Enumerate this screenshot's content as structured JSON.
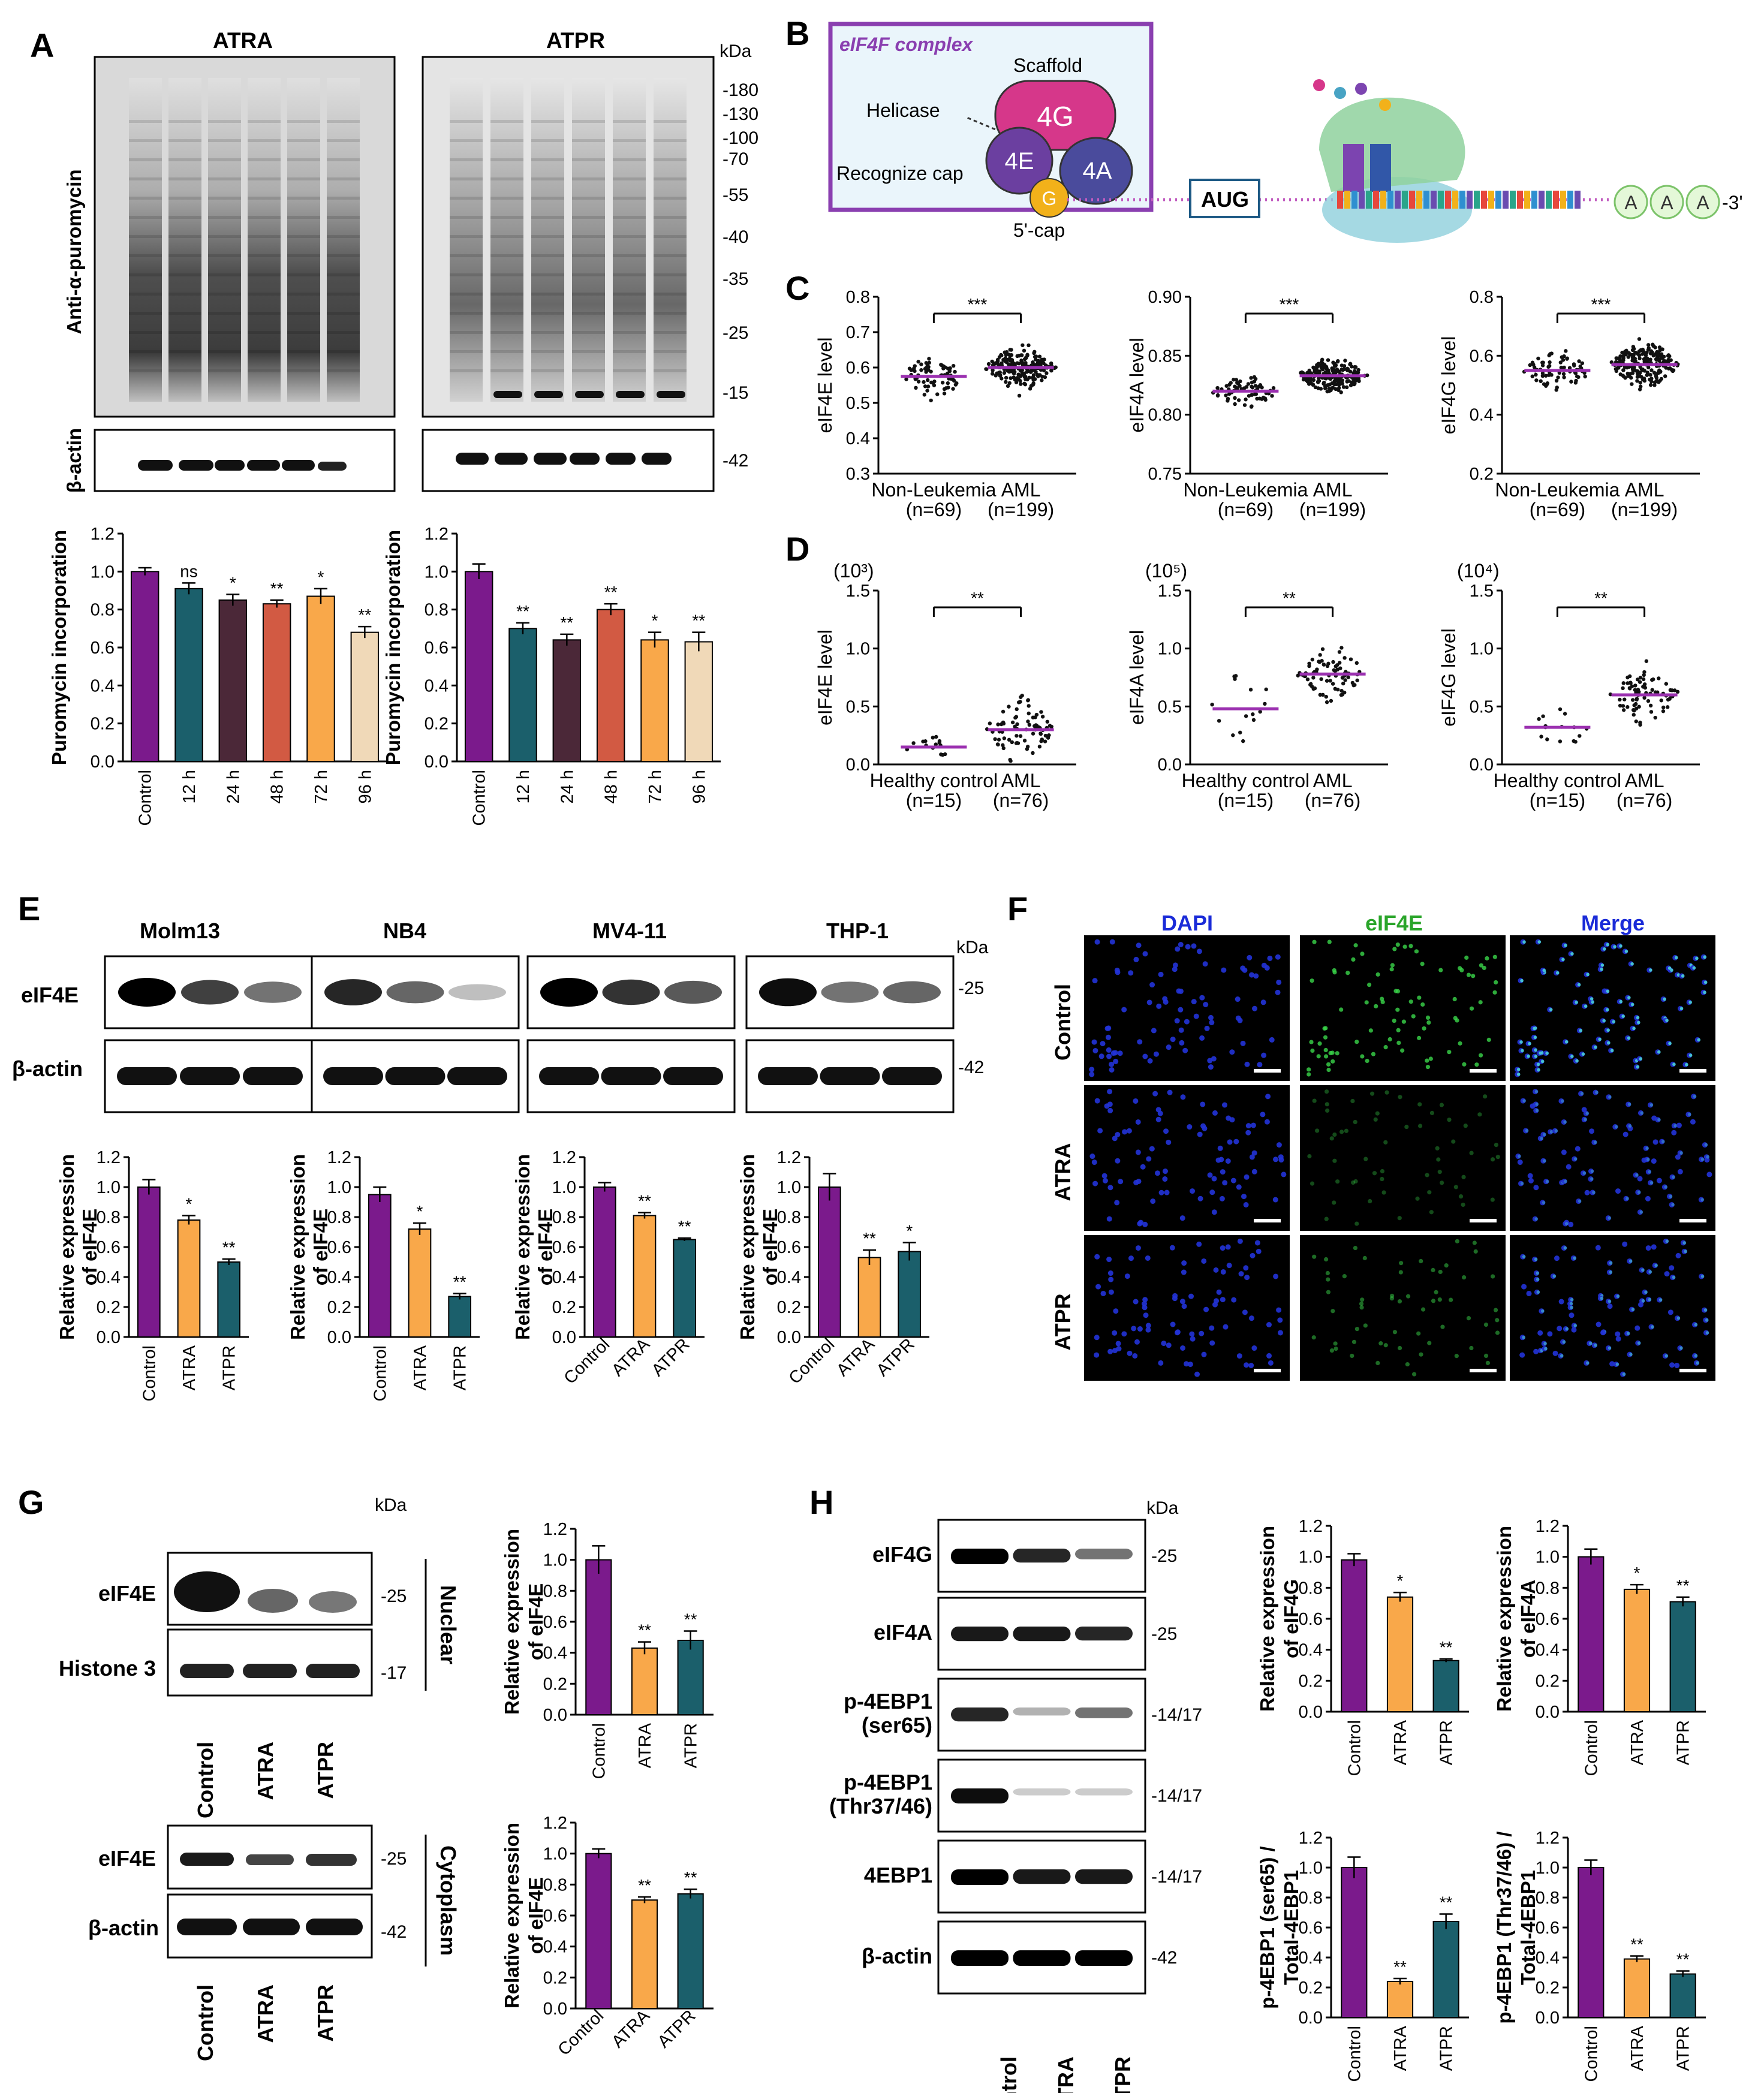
{
  "panels": {
    "A": {
      "label": "A",
      "blot_titles": [
        "ATRA",
        "ATPR"
      ],
      "kda_unit": "kDa",
      "markers": [
        "-180",
        "-130",
        "-100",
        "-70",
        "-55",
        "-40",
        "-35",
        "-25",
        "-15",
        "-42"
      ],
      "row_labels": [
        "Anti-α-puromycin",
        "β-actin"
      ]
    },
    "B": {
      "label": "B",
      "complex_title": "eIF4F complex",
      "scaffold": "Scaffold",
      "helicase": "Helicase",
      "recognize_cap": "Recognize cap",
      "sub_4G": "4G",
      "sub_4E": "4E",
      "sub_4A": "4A",
      "cap_g": "G",
      "cap_label": "5'-cap",
      "aug": "AUG",
      "polyA": [
        "A",
        "A",
        "A"
      ],
      "three_prime": "-3'"
    },
    "C": {
      "label": "C"
    },
    "D": {
      "label": "D"
    },
    "E": {
      "label": "E",
      "cells": [
        "Molm13",
        "NB4",
        "MV4-11",
        "THP-1"
      ],
      "rows": [
        "eIF4E",
        "β-actin"
      ],
      "kda_unit": "kDa",
      "markers": [
        "-25",
        "-42"
      ]
    },
    "F": {
      "label": "F",
      "cols": [
        "DAPI",
        "eIF4E",
        "Merge"
      ],
      "rows": [
        "Control",
        "ATRA",
        "ATPR"
      ]
    },
    "G": {
      "label": "G",
      "kda_unit": "kDa",
      "nuc_rows": [
        "eIF4E",
        "Histone 3"
      ],
      "nuc_markers": [
        "-25",
        "-17"
      ],
      "cyto_rows": [
        "eIF4E",
        "β-actin"
      ],
      "cyto_markers": [
        "-25",
        "-42"
      ],
      "fraction_nuclear": "Nuclear",
      "fraction_cyto": "Cytoplasm",
      "lanes": [
        "Control",
        "ATRA",
        "ATPR"
      ]
    },
    "H": {
      "label": "H",
      "kda_unit": "kDa",
      "rows": [
        "eIF4G",
        "eIF4A",
        "p-4EBP1\n(ser65)",
        "p-4EBP1\n(Thr37/46)",
        "4EBP1",
        "β-actin"
      ],
      "markers": [
        "-25",
        "-25",
        "-14/17",
        "-14/17",
        "-14/17",
        "-42"
      ],
      "lanes": [
        "Control",
        "ATRA",
        "ATPR"
      ]
    }
  },
  "colors": {
    "control": "#7b1a8c",
    "c12": "#1b5f6b",
    "c24": "#4b2838",
    "c48": "#d25a43",
    "c72": "#f9a84a",
    "c96": "#f0d9b8",
    "atra": "#f9a84a",
    "atpr": "#1b5f6b",
    "scatter_mean": "#9b30b0"
  },
  "chart_data": [
    {
      "id": "A-left",
      "type": "bar",
      "categories": [
        "Control",
        "12 h",
        "24 h",
        "48 h",
        "72 h",
        "96 h"
      ],
      "values": [
        1.0,
        0.91,
        0.85,
        0.83,
        0.87,
        0.68
      ],
      "errors": [
        0.02,
        0.03,
        0.03,
        0.02,
        0.04,
        0.03
      ],
      "sig": [
        "",
        "ns",
        "*",
        "**",
        "*",
        "**"
      ],
      "ylabel": "Puromycin incorporation",
      "ylim": [
        0,
        1.2
      ],
      "yticks": [
        "0.0",
        "0.2",
        "0.4",
        "0.6",
        "0.8",
        "1.0",
        "1.2"
      ]
    },
    {
      "id": "A-right",
      "type": "bar",
      "categories": [
        "Control",
        "12 h",
        "24 h",
        "48 h",
        "72 h",
        "96 h"
      ],
      "values": [
        1.0,
        0.7,
        0.64,
        0.8,
        0.64,
        0.63
      ],
      "errors": [
        0.04,
        0.03,
        0.03,
        0.03,
        0.04,
        0.05
      ],
      "sig": [
        "",
        "**",
        "**",
        "**",
        "*",
        "**"
      ],
      "ylabel": "Puromycin incorporation",
      "ylim": [
        0,
        1.2
      ],
      "yticks": [
        "0.0",
        "0.2",
        "0.4",
        "0.6",
        "0.8",
        "1.0",
        "1.2"
      ]
    },
    {
      "id": "C-4E",
      "type": "scatter",
      "categories": [
        "Non-Leukemia\n(n=69)",
        "AML\n(n=199)"
      ],
      "means": [
        0.575,
        0.6
      ],
      "ylabel": "eIF4E level",
      "ylim": [
        0.3,
        0.8
      ],
      "yticks": [
        "0.3",
        "0.4",
        "0.5",
        "0.6",
        "0.7",
        "0.8"
      ],
      "sig": "***"
    },
    {
      "id": "C-4A",
      "type": "scatter",
      "categories": [
        "Non-Leukemia\n(n=69)",
        "AML\n(n=199)"
      ],
      "means": [
        0.82,
        0.833
      ],
      "ylabel": "eIF4A level",
      "ylim": [
        0.75,
        0.9
      ],
      "yticks": [
        "0.75",
        "0.80",
        "0.85",
        "0.90"
      ],
      "sig": "***"
    },
    {
      "id": "C-4G",
      "type": "scatter",
      "categories": [
        "Non-Leukemia\n(n=69)",
        "AML\n(n=199)"
      ],
      "means": [
        0.55,
        0.57
      ],
      "ylabel": "eIF4G level",
      "ylim": [
        0.2,
        0.8
      ],
      "yticks": [
        "0.2",
        "0.4",
        "0.6",
        "0.8"
      ],
      "sig": "***"
    },
    {
      "id": "D-4E",
      "type": "scatter",
      "categories": [
        "Healthy control\n(n=15)",
        "AML\n(n=76)"
      ],
      "means": [
        0.15,
        0.3
      ],
      "ylabel": "eIF4E level",
      "scale": "(10³)",
      "ylim": [
        0,
        1.5
      ],
      "yticks": [
        "0.0",
        "0.5",
        "1.0",
        "1.5"
      ],
      "sig": "**"
    },
    {
      "id": "D-4A",
      "type": "scatter",
      "categories": [
        "Healthy control\n(n=15)",
        "AML\n(n=76)"
      ],
      "means": [
        0.48,
        0.78
      ],
      "ylabel": "eIF4A level",
      "scale": "(10⁵)",
      "ylim": [
        0,
        1.5
      ],
      "yticks": [
        "0.0",
        "0.5",
        "1.0",
        "1.5"
      ],
      "sig": "**"
    },
    {
      "id": "D-4G",
      "type": "scatter",
      "categories": [
        "Healthy control\n(n=15)",
        "AML\n(n=76)"
      ],
      "means": [
        0.32,
        0.6
      ],
      "ylabel": "eIF4G level",
      "scale": "(10⁴)",
      "ylim": [
        0,
        1.5
      ],
      "yticks": [
        "0.0",
        "0.5",
        "1.0",
        "1.5"
      ],
      "sig": "**"
    },
    {
      "id": "E-Molm13",
      "type": "bar",
      "categories": [
        "Control",
        "ATRA",
        "ATPR"
      ],
      "values": [
        1.0,
        0.78,
        0.5
      ],
      "errors": [
        0.05,
        0.03,
        0.02
      ],
      "sig": [
        "",
        "*",
        "**"
      ],
      "ylabel": "Relative expression\nof eIF4E",
      "ylim": [
        0,
        1.2
      ],
      "yticks": [
        "0.0",
        "0.2",
        "0.4",
        "0.6",
        "0.8",
        "1.0",
        "1.2"
      ]
    },
    {
      "id": "E-NB4",
      "type": "bar",
      "categories": [
        "Control",
        "ATRA",
        "ATPR"
      ],
      "values": [
        0.95,
        0.72,
        0.27
      ],
      "errors": [
        0.05,
        0.04,
        0.02
      ],
      "sig": [
        "",
        "*",
        "**"
      ],
      "ylabel": "Relative expression\nof eIF4E",
      "ylim": [
        0,
        1.2
      ],
      "yticks": [
        "0.0",
        "0.2",
        "0.4",
        "0.6",
        "0.8",
        "1.0",
        "1.2"
      ]
    },
    {
      "id": "E-MV4-11",
      "type": "bar",
      "categories": [
        "Control",
        "ATRA",
        "ATPR"
      ],
      "values": [
        1.0,
        0.81,
        0.65
      ],
      "errors": [
        0.03,
        0.02,
        0.01
      ],
      "sig": [
        "",
        "**",
        "**"
      ],
      "ylabel": "Relative expression\nof eIF4E",
      "ylim": [
        0,
        1.2
      ],
      "yticks": [
        "0.0",
        "0.2",
        "0.4",
        "0.6",
        "0.8",
        "1.0",
        "1.2"
      ]
    },
    {
      "id": "E-THP-1",
      "type": "bar",
      "categories": [
        "Control",
        "ATRA",
        "ATPR"
      ],
      "values": [
        1.0,
        0.53,
        0.57
      ],
      "errors": [
        0.09,
        0.05,
        0.06
      ],
      "sig": [
        "",
        "**",
        "*"
      ],
      "ylabel": "Relative expression\nof eIF4E",
      "ylim": [
        0,
        1.2
      ],
      "yticks": [
        "0.0",
        "0.2",
        "0.4",
        "0.6",
        "0.8",
        "1.0",
        "1.2"
      ]
    },
    {
      "id": "G-nuclear",
      "type": "bar",
      "categories": [
        "Control",
        "ATRA",
        "ATPR"
      ],
      "values": [
        1.0,
        0.43,
        0.48
      ],
      "errors": [
        0.09,
        0.04,
        0.06
      ],
      "sig": [
        "",
        "**",
        "**"
      ],
      "ylabel": "Relative expression\nof eIF4E",
      "ylim": [
        0,
        1.2
      ],
      "yticks": [
        "0.0",
        "0.2",
        "0.4",
        "0.6",
        "0.8",
        "1.0",
        "1.2"
      ]
    },
    {
      "id": "G-cyto",
      "type": "bar",
      "categories": [
        "Control",
        "ATRA",
        "ATPR"
      ],
      "values": [
        1.0,
        0.7,
        0.74
      ],
      "errors": [
        0.03,
        0.02,
        0.03
      ],
      "sig": [
        "",
        "**",
        "**"
      ],
      "ylabel": "Relative expression\nof eIF4E",
      "ylim": [
        0,
        1.2
      ],
      "yticks": [
        "0.0",
        "0.2",
        "0.4",
        "0.6",
        "0.8",
        "1.0",
        "1.2"
      ]
    },
    {
      "id": "H-4G",
      "type": "bar",
      "categories": [
        "Control",
        "ATRA",
        "ATPR"
      ],
      "values": [
        0.98,
        0.74,
        0.33
      ],
      "errors": [
        0.04,
        0.03,
        0.01
      ],
      "sig": [
        "",
        "*",
        "**"
      ],
      "ylabel": "Relative expression\nof eIF4G",
      "ylim": [
        0,
        1.2
      ],
      "yticks": [
        "0.0",
        "0.2",
        "0.4",
        "0.6",
        "0.8",
        "1.0",
        "1.2"
      ]
    },
    {
      "id": "H-4A",
      "type": "bar",
      "categories": [
        "Control",
        "ATRA",
        "ATPR"
      ],
      "values": [
        1.0,
        0.79,
        0.71
      ],
      "errors": [
        0.05,
        0.03,
        0.03
      ],
      "sig": [
        "",
        "*",
        "**"
      ],
      "ylabel": "Relative expression\nof eIF4A",
      "ylim": [
        0,
        1.2
      ],
      "yticks": [
        "0.0",
        "0.2",
        "0.4",
        "0.6",
        "0.8",
        "1.0",
        "1.2"
      ]
    },
    {
      "id": "H-ser65",
      "type": "bar",
      "categories": [
        "Control",
        "ATRA",
        "ATPR"
      ],
      "values": [
        1.0,
        0.24,
        0.64
      ],
      "errors": [
        0.07,
        0.02,
        0.05
      ],
      "sig": [
        "",
        "**",
        "**"
      ],
      "ylabel": "p-4EBP1 (ser65) /\nTotal-4EBP1",
      "ylim": [
        0,
        1.2
      ],
      "yticks": [
        "0.0",
        "0.2",
        "0.4",
        "0.6",
        "0.8",
        "1.0",
        "1.2"
      ]
    },
    {
      "id": "H-thr",
      "type": "bar",
      "categories": [
        "Control",
        "ATRA",
        "ATPR"
      ],
      "values": [
        1.0,
        0.39,
        0.29
      ],
      "errors": [
        0.05,
        0.02,
        0.02
      ],
      "sig": [
        "",
        "**",
        "**"
      ],
      "ylabel": "p-4EBP1 (Thr37/46) /\nTotal-4EBP1",
      "ylim": [
        0,
        1.2
      ],
      "yticks": [
        "0.0",
        "0.2",
        "0.4",
        "0.6",
        "0.8",
        "1.0",
        "1.2"
      ]
    }
  ]
}
